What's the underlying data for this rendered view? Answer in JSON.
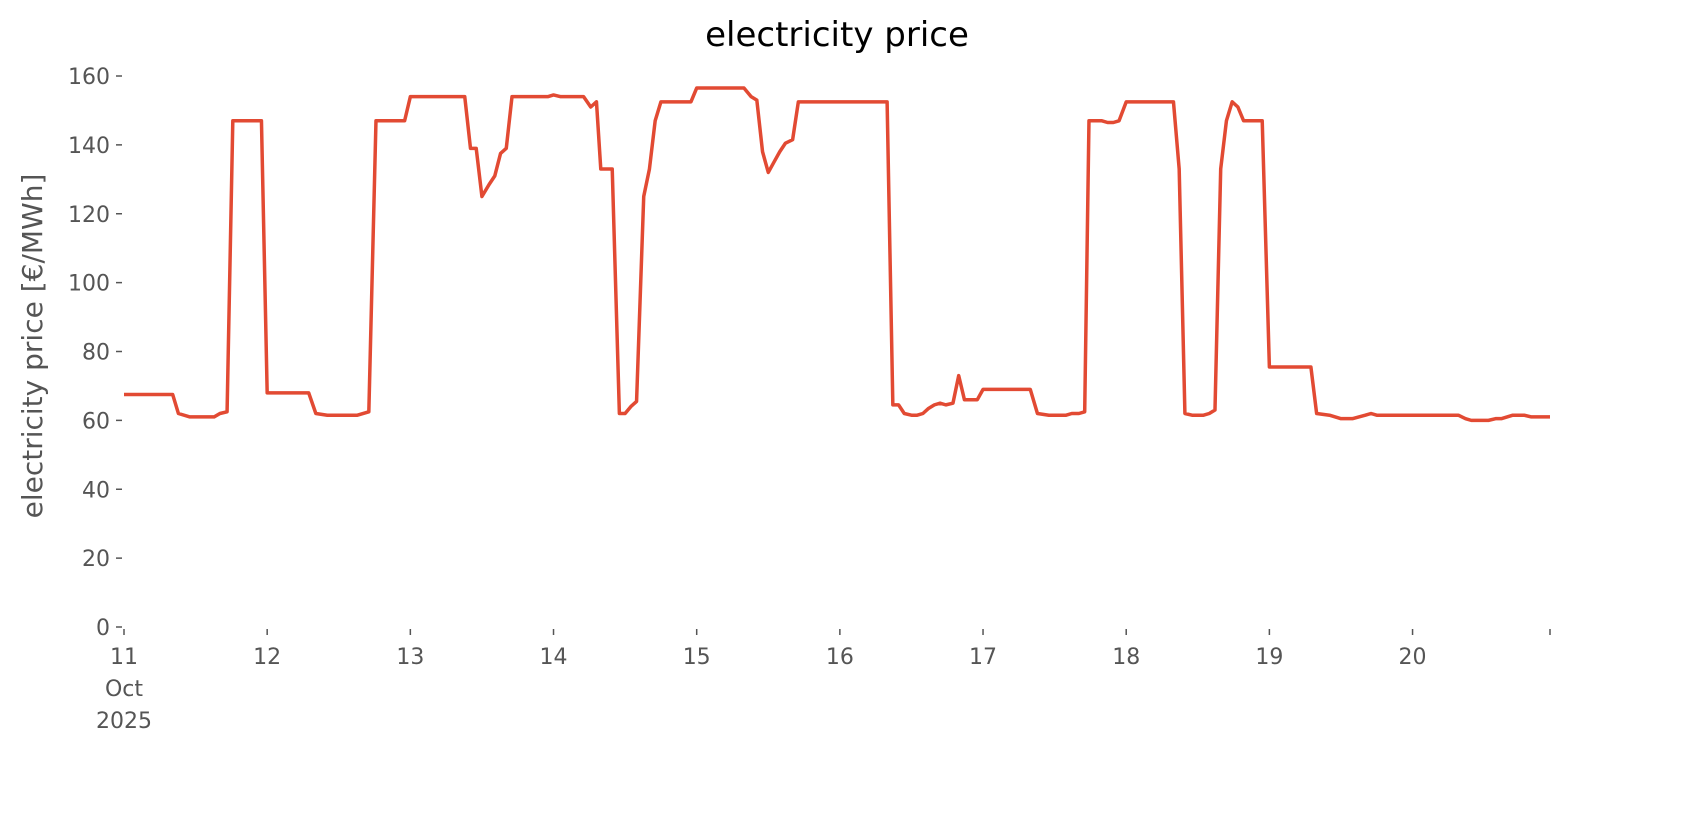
{
  "chart_data": {
    "type": "line",
    "title": "electricity price",
    "ylabel": "electricity price [€/MWh]",
    "color": "#e24a33",
    "x": [
      11.0,
      11.34,
      11.38,
      11.46,
      11.63,
      11.67,
      11.72,
      11.76,
      11.96,
      12.0,
      12.29,
      12.34,
      12.42,
      12.63,
      12.71,
      12.76,
      12.96,
      13.0,
      13.38,
      13.42,
      13.46,
      13.5,
      13.55,
      13.59,
      13.63,
      13.67,
      13.71,
      13.96,
      14.0,
      14.05,
      14.21,
      14.26,
      14.3,
      14.33,
      14.41,
      14.46,
      14.5,
      14.54,
      14.58,
      14.63,
      14.67,
      14.71,
      14.75,
      14.96,
      15.0,
      15.33,
      15.38,
      15.42,
      15.46,
      15.5,
      15.54,
      15.58,
      15.62,
      15.67,
      15.71,
      16.33,
      16.37,
      16.41,
      16.45,
      16.5,
      16.54,
      16.58,
      16.62,
      16.66,
      16.7,
      16.74,
      16.79,
      16.83,
      16.87,
      16.96,
      17.0,
      17.33,
      17.38,
      17.46,
      17.58,
      17.62,
      17.67,
      17.71,
      17.74,
      17.83,
      17.87,
      17.91,
      17.95,
      18.0,
      18.33,
      18.37,
      18.41,
      18.46,
      18.54,
      18.58,
      18.62,
      18.66,
      18.7,
      18.74,
      18.78,
      18.82,
      18.95,
      19.0,
      19.29,
      19.33,
      19.42,
      19.5,
      19.58,
      19.67,
      19.71,
      19.75,
      20.32,
      20.37,
      20.41,
      20.53,
      20.58,
      20.62,
      20.7,
      20.78,
      20.83,
      20.96
    ],
    "values": [
      67.5,
      67.5,
      62,
      61,
      61,
      62,
      62.5,
      147,
      147,
      68,
      68,
      62,
      61.5,
      61.5,
      62.5,
      147,
      147,
      154,
      154,
      139,
      139,
      125,
      128.5,
      131,
      137.5,
      139,
      154,
      154,
      154.5,
      154,
      154,
      151,
      152.5,
      133,
      133,
      62,
      62,
      64,
      65.5,
      125,
      133,
      147,
      152.5,
      152.5,
      156.5,
      156.5,
      154,
      153,
      138,
      132,
      135,
      138,
      140.5,
      141.5,
      152.5,
      152.5,
      64.5,
      64.5,
      62,
      61.5,
      61.5,
      62,
      63.5,
      64.5,
      65,
      64.5,
      65,
      73,
      66,
      66,
      69,
      69,
      62,
      61.5,
      61.5,
      62,
      62,
      62.5,
      147,
      147,
      146.5,
      146.5,
      147,
      152.5,
      152.5,
      133,
      62,
      61.5,
      61.5,
      62,
      63,
      133,
      147,
      152.5,
      151,
      147,
      147,
      75.5,
      75.5,
      62,
      61.5,
      60.5,
      60.5,
      61.5,
      62,
      61.5,
      61.5,
      60.5,
      60,
      60,
      60.5,
      60.5,
      61.5,
      61.5,
      61,
      61
    ],
    "xlim": [
      11,
      20.96
    ],
    "xticks": [
      {
        "value": 11,
        "label": "11\nOct\n2025"
      },
      12,
      13,
      14,
      15,
      16,
      17,
      18,
      19,
      20,
      {
        "value": 20.96,
        "label": null
      }
    ],
    "ylim": [
      0,
      160
    ],
    "yticks": [
      0,
      20,
      40,
      60,
      80,
      100,
      120,
      140,
      160
    ],
    "grid": false
  }
}
